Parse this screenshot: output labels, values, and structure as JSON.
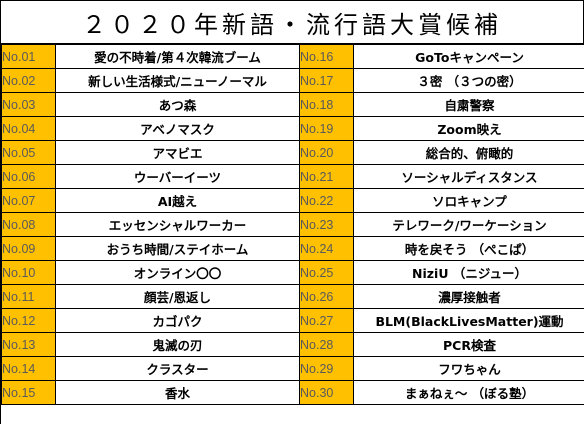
{
  "title": "２０２０年新語・流行語大賞候補",
  "left": [
    {
      "no": "No.01",
      "word": "愛の不時着/第４次韓流ブーム"
    },
    {
      "no": "No.02",
      "word": "新しい生活様式/ニューノーマル"
    },
    {
      "no": "No.03",
      "word": "あつ森"
    },
    {
      "no": "No.04",
      "word": "アベノマスク"
    },
    {
      "no": "No.05",
      "word": "アマビエ"
    },
    {
      "no": "No.06",
      "word": "ウーバーイーツ"
    },
    {
      "no": "No.07",
      "word": "AI越え"
    },
    {
      "no": "No.08",
      "word": "エッセンシャルワーカー"
    },
    {
      "no": "No.09",
      "word": "おうち時間/ステイホーム"
    },
    {
      "no": "No.10",
      "word": "オンライン〇〇"
    },
    {
      "no": "No.11",
      "word": "顔芸/恩返し"
    },
    {
      "no": "No.12",
      "word": "カゴパク"
    },
    {
      "no": "No.13",
      "word": "鬼滅の刃"
    },
    {
      "no": "No.14",
      "word": "クラスター"
    },
    {
      "no": "No.15",
      "word": "香水"
    }
  ],
  "right": [
    {
      "no": "No.16",
      "word": "GoToキャンペーン"
    },
    {
      "no": "No.17",
      "word": "３密 （３つの密）"
    },
    {
      "no": "No.18",
      "word": "自粛警察"
    },
    {
      "no": "No.19",
      "word": "Zoom映え"
    },
    {
      "no": "No.20",
      "word": "総合的、俯瞰的"
    },
    {
      "no": "No.21",
      "word": "ソーシャルディスタンス"
    },
    {
      "no": "No.22",
      "word": "ソロキャンプ"
    },
    {
      "no": "No.23",
      "word": "テレワーク/ワーケーション"
    },
    {
      "no": "No.24",
      "word": "時を戻そう （ぺこぱ）"
    },
    {
      "no": "No.25",
      "word": "NiziU （ニジュー）"
    },
    {
      "no": "No.26",
      "word": "濃厚接触者"
    },
    {
      "no": "No.27",
      "word": "BLM(BlackLivesMatter)運動"
    },
    {
      "no": "No.28",
      "word": "PCR検査"
    },
    {
      "no": "No.29",
      "word": "フワちゃん"
    },
    {
      "no": "No.30",
      "word": "まぁねぇ～ （ぼる塾）"
    }
  ],
  "colors": {
    "number_cell_bg": "#ffc000",
    "number_text": "#5a5a5a",
    "word_cell_bg": "#ffffff",
    "border": "#000000"
  }
}
